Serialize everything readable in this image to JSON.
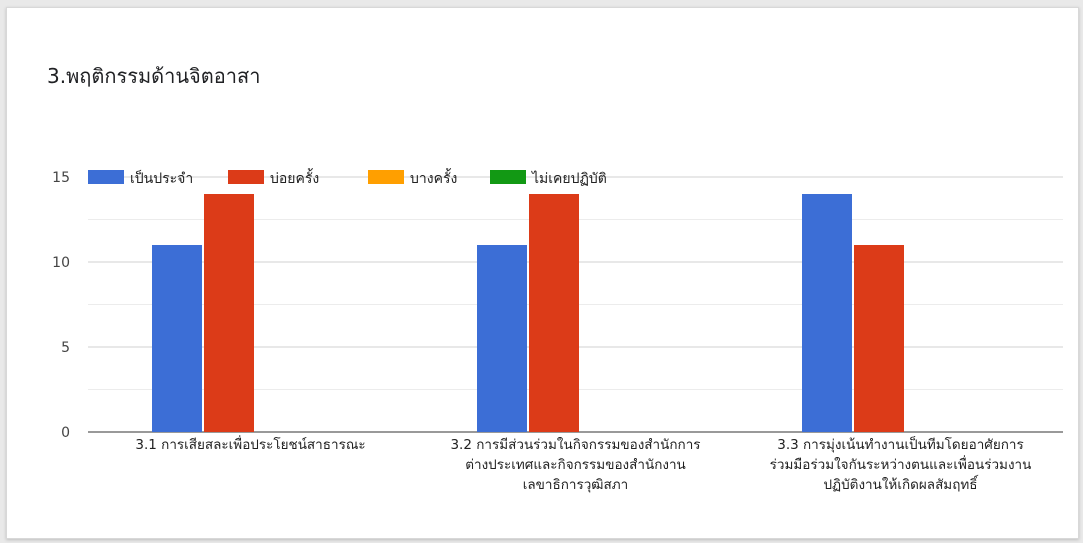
{
  "chart_data": {
    "type": "bar",
    "title": "3.พฤติกรรมด้านจิตอาสา",
    "xlabel": "",
    "ylabel": "",
    "ylim": [
      0,
      15
    ],
    "yticks": [
      0,
      5,
      10,
      15
    ],
    "grid": true,
    "legend_position": "top-left",
    "categories": [
      [
        "3.1 การเสียสละเพื่อประโยชน์สาธารณะ"
      ],
      [
        "3.2 การมีส่วนร่วมในกิจกรรมของสำนักการ",
        "ต่างประเทศและกิจกรรมของสำนักงาน",
        "เลขาธิการวุฒิสภา"
      ],
      [
        "3.3 การมุ่งเน้นทำงานเป็นทีมโดยอาศัยการ",
        "ร่วมมือร่วมใจกันระหว่างตนและเพื่อนร่วมงาน",
        "ปฏิบัติงานให้เกิดผลสัมฤทธิ์"
      ]
    ],
    "series": [
      {
        "name": "เป็นประจำ",
        "color": "#3c6ed6",
        "values": [
          11,
          11,
          14
        ]
      },
      {
        "name": "บ่อยครั้ง",
        "color": "#dc3b18",
        "values": [
          14,
          14,
          11
        ]
      },
      {
        "name": "บางครั้ง",
        "color": "#ff9f00",
        "values": [
          0,
          0,
          0
        ]
      },
      {
        "name": "ไม่เคยปฏิบัติ",
        "color": "#129914",
        "values": [
          0,
          0,
          0
        ]
      }
    ]
  }
}
